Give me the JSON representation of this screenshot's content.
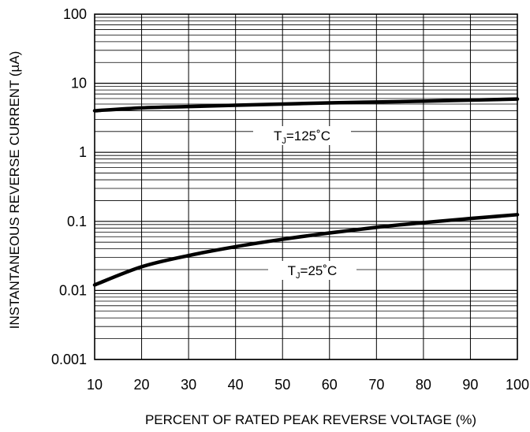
{
  "chart_data": {
    "type": "line",
    "title": "",
    "xlabel": "PERCENT OF RATED PEAK REVERSE VOLTAGE (%)",
    "ylabel": "INSTANTANEOUS REVERSE CURRENT (µA)",
    "x_scale": "linear",
    "y_scale": "log",
    "xlim": [
      10,
      100
    ],
    "ylim": [
      0.001,
      100
    ],
    "x_ticks": [
      10,
      20,
      30,
      40,
      50,
      60,
      70,
      80,
      90,
      100
    ],
    "x_tick_labels": [
      "10",
      "20",
      "30",
      "40",
      "50",
      "60",
      "70",
      "80",
      "90",
      "100"
    ],
    "y_ticks": [
      0.001,
      0.01,
      0.1,
      1,
      10,
      100
    ],
    "y_tick_labels": [
      "0.001",
      "0.01",
      "0.1",
      "1",
      "10",
      "100"
    ],
    "grid": true,
    "series": [
      {
        "label_main": "T",
        "label_sub": "J",
        "label_rest": "=125˚C",
        "color": "#000000",
        "x": [
          10,
          20,
          30,
          40,
          50,
          60,
          70,
          80,
          90,
          100
        ],
        "y": [
          4.0,
          4.4,
          4.6,
          4.8,
          5.0,
          5.2,
          5.35,
          5.5,
          5.7,
          5.9
        ]
      },
      {
        "label_main": "T",
        "label_sub": "J",
        "label_rest": "=25˚C",
        "color": "#000000",
        "x": [
          10,
          20,
          30,
          40,
          50,
          60,
          70,
          80,
          90,
          100
        ],
        "y": [
          0.012,
          0.022,
          0.032,
          0.043,
          0.055,
          0.068,
          0.082,
          0.096,
          0.11,
          0.125
        ]
      }
    ]
  }
}
